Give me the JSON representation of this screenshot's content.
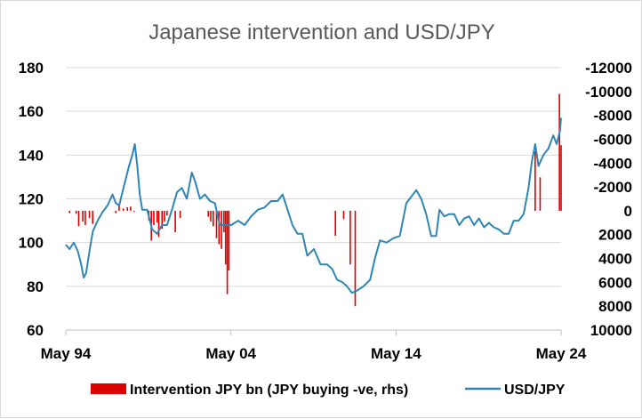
{
  "colors": {
    "intervention": "#dc0000",
    "usdjpy": "#2e86b4",
    "grid": "#d9d9d9"
  },
  "chart_data": {
    "type": "line",
    "title": "Japanese intervention and USD/JPY",
    "x_ticks": [
      "May 94",
      "May 04",
      "May 14",
      "May 24"
    ],
    "left_axis": {
      "ticks": [
        "60",
        "80",
        "100",
        "120",
        "140",
        "160",
        "180"
      ],
      "ylim": [
        60,
        180
      ]
    },
    "right_axis": {
      "ticks": [
        "10000",
        "8000",
        "6000",
        "4000",
        "2000",
        "0",
        "-2000",
        "-4000",
        "-6000",
        "-8000",
        "-10000",
        "-12000"
      ],
      "ylim": [
        10000,
        -12000
      ],
      "reversed": true
    },
    "legend_position": "bottom",
    "series": [
      {
        "name": "USD/JPY",
        "type": "line",
        "axis": "left",
        "x": [
          1994.37,
          1994.6,
          1994.85,
          1995.1,
          1995.3,
          1995.45,
          1995.6,
          1995.8,
          1996.0,
          1996.3,
          1996.6,
          1996.9,
          1997.2,
          1997.4,
          1997.6,
          1997.9,
          1998.2,
          1998.4,
          1998.55,
          1998.7,
          1998.85,
          1999.0,
          1999.3,
          1999.6,
          1999.9,
          2000.2,
          2000.5,
          2000.8,
          2001.1,
          2001.4,
          2001.7,
          2002.0,
          2002.2,
          2002.5,
          2002.8,
          2003.1,
          2003.4,
          2003.7,
          2004.0,
          2004.4,
          2004.8,
          2005.2,
          2005.6,
          2006.0,
          2006.4,
          2006.8,
          2007.2,
          2007.5,
          2007.8,
          2008.1,
          2008.4,
          2008.7,
          2009.0,
          2009.4,
          2009.8,
          2010.2,
          2010.5,
          2010.8,
          2011.1,
          2011.4,
          2011.7,
          2012.0,
          2012.4,
          2012.8,
          2013.1,
          2013.4,
          2013.8,
          2014.2,
          2014.6,
          2015.0,
          2015.3,
          2015.6,
          2015.9,
          2016.2,
          2016.5,
          2016.8,
          2017.0,
          2017.3,
          2017.6,
          2017.9,
          2018.2,
          2018.5,
          2018.8,
          2019.1,
          2019.4,
          2019.7,
          2020.0,
          2020.3,
          2020.6,
          2020.9,
          2021.2,
          2021.5,
          2021.8,
          2022.1,
          2022.4,
          2022.6,
          2022.8,
          2023.0,
          2023.3,
          2023.6,
          2023.9,
          2024.1,
          2024.3,
          2024.37
        ],
        "values": [
          99,
          97,
          100,
          96,
          90,
          84,
          86,
          96,
          105,
          110,
          114,
          117,
          122,
          118,
          117,
          126,
          135,
          140,
          145,
          135,
          122,
          115,
          115,
          106,
          104,
          108,
          108,
          115,
          123,
          125,
          120,
          132,
          128,
          120,
          122,
          119,
          118,
          108,
          108,
          108,
          110,
          108,
          112,
          115,
          116,
          119,
          119,
          122,
          115,
          108,
          104,
          104,
          94,
          97,
          90,
          90,
          88,
          83,
          82,
          80,
          77,
          78,
          80,
          83,
          93,
          101,
          100,
          102,
          103,
          118,
          121,
          124,
          120,
          113,
          103,
          103,
          115,
          112,
          113,
          113,
          108,
          111,
          112,
          108,
          111,
          107,
          109,
          107,
          106,
          104,
          104,
          110,
          110,
          113,
          125,
          137,
          145,
          135,
          140,
          143,
          149,
          145,
          151,
          157
        ]
      },
      {
        "name": "Intervention JPY bn (JPY buying -ve, rhs)",
        "type": "bar",
        "axis": "right",
        "x": [
          1994.6,
          1995.0,
          1995.15,
          1995.4,
          1995.55,
          1995.8,
          1996.0,
          1997.4,
          1997.6,
          1997.85,
          1998.1,
          1998.3,
          1998.5,
          1999.4,
          1999.55,
          1999.7,
          1999.9,
          2000.0,
          2000.2,
          2000.35,
          2000.5,
          2001.0,
          2001.3,
          2003.0,
          2003.15,
          2003.3,
          2003.5,
          2003.65,
          2003.8,
          2003.95,
          2004.05,
          2004.15,
          2004.25,
          2010.7,
          2011.2,
          2011.6,
          2011.9,
          2022.8,
          2023.1,
          2024.27,
          2024.37
        ],
        "values": [
          200,
          250,
          1300,
          900,
          1200,
          600,
          1100,
          200,
          -400,
          -200,
          -300,
          -350,
          100,
          800,
          2500,
          1200,
          1000,
          2200,
          1500,
          900,
          400,
          1800,
          600,
          500,
          900,
          1300,
          2300,
          2800,
          3200,
          1800,
          4500,
          7000,
          5000,
          2100,
          700,
          4500,
          8000,
          -5000,
          -2800,
          -9800,
          -5500
        ]
      }
    ]
  },
  "legend": {
    "intervention_label": "Intervention JPY bn (JPY buying -ve, rhs)",
    "usdjpy_label": "USD/JPY"
  }
}
